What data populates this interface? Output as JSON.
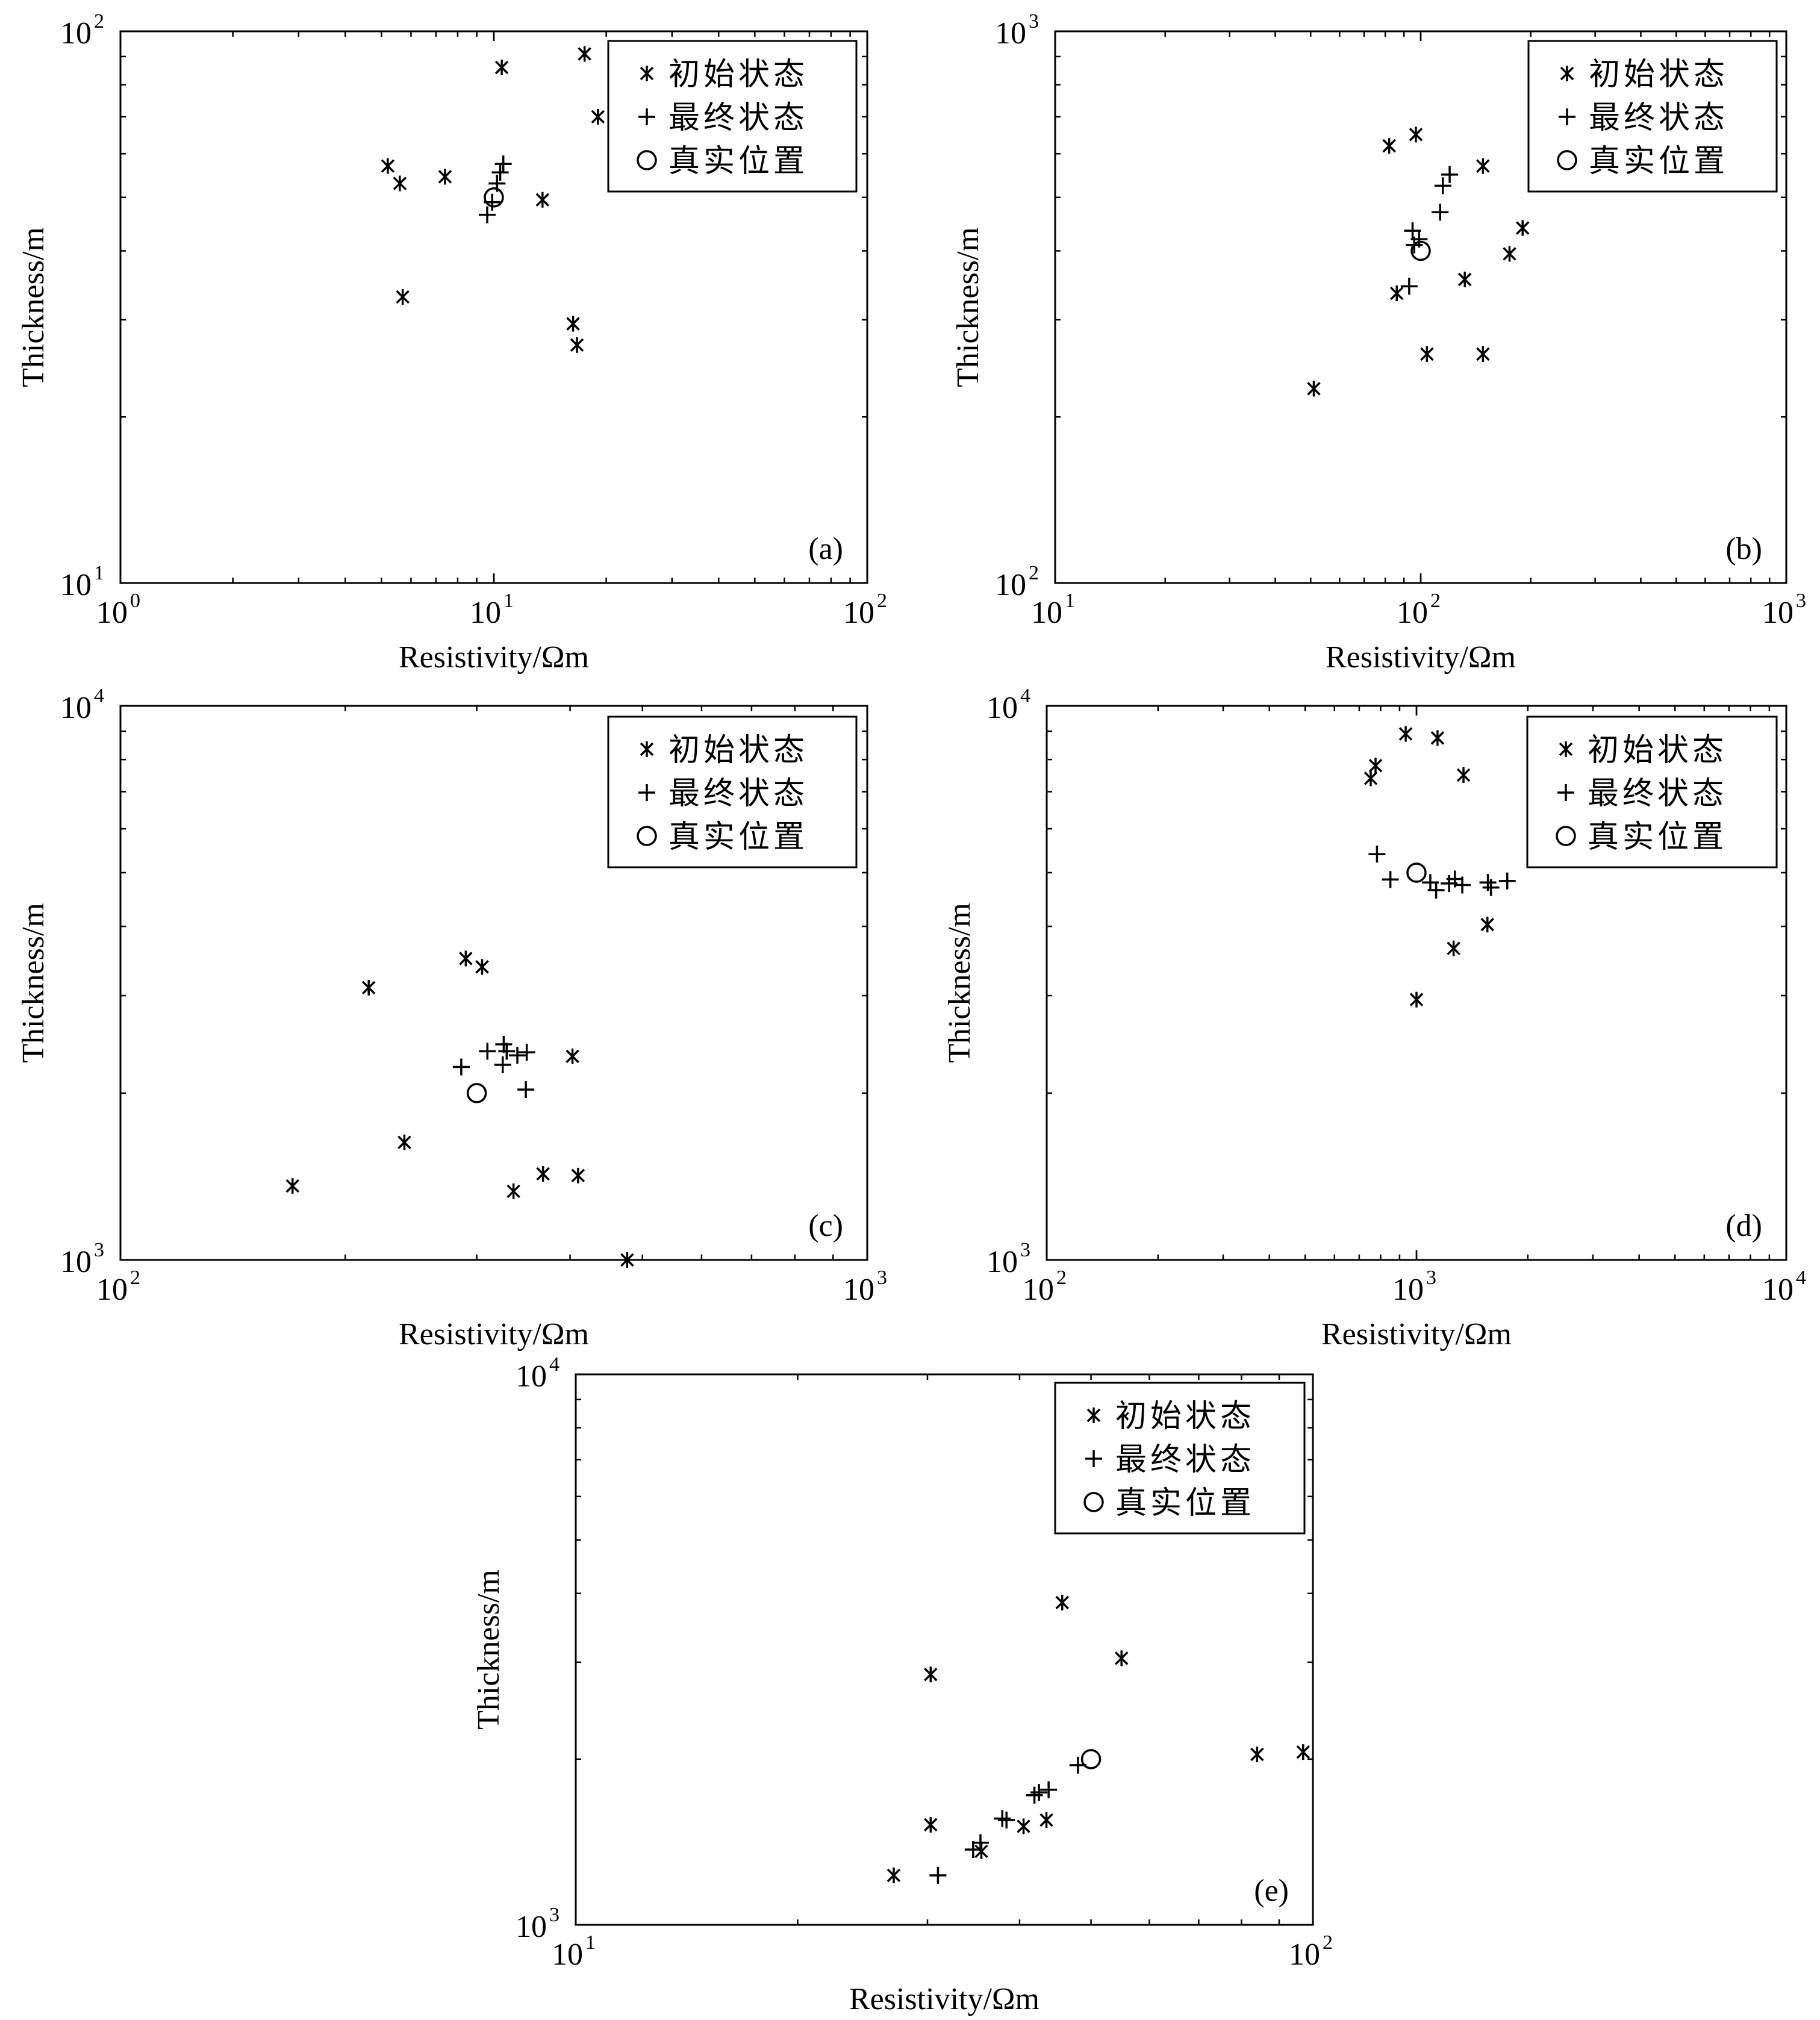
{
  "figure": {
    "legend": {
      "initial": "初始状态",
      "final": "最终状态",
      "true": "真实位置"
    }
  },
  "chart_data": [
    {
      "type": "scatter",
      "panel_label": "(a)",
      "xlabel": "Resistivity/Ωm",
      "ylabel": "Thickness/m",
      "x_scale": "log",
      "y_scale": "log",
      "x_ticks": [
        {
          "base": "10",
          "exp": "0"
        },
        {
          "base": "10",
          "exp": "1"
        },
        {
          "base": "10",
          "exp": "2"
        }
      ],
      "y_ticks": [
        {
          "base": "10",
          "exp": "1"
        },
        {
          "base": "10",
          "exp": "2"
        }
      ],
      "xlim": [
        1,
        100
      ],
      "ylim": [
        10,
        100
      ],
      "legend_position": "top-right",
      "grid": false,
      "series": [
        {
          "name": "初始状态",
          "marker": "asterisk",
          "x": [
            10.5,
            17.5,
            19,
            5.2,
            5.6,
            7.4,
            13.5,
            5.7,
            16.3,
            16.7
          ],
          "y": [
            86,
            91,
            70,
            57,
            53,
            54.5,
            49.5,
            33,
            29.5,
            27
          ]
        },
        {
          "name": "最终状态",
          "marker": "plus",
          "x": [
            9.6,
            9.9,
            10.2,
            10.4,
            10.6
          ],
          "y": [
            46.5,
            49,
            53,
            55.5,
            57.5
          ]
        },
        {
          "name": "真实位置",
          "marker": "circle",
          "x": [
            10
          ],
          "y": [
            50
          ]
        }
      ]
    },
    {
      "type": "scatter",
      "panel_label": "(b)",
      "xlabel": "Resistivity/Ωm",
      "ylabel": "Thickness/m",
      "x_scale": "log",
      "y_scale": "log",
      "x_ticks": [
        {
          "base": "10",
          "exp": "1"
        },
        {
          "base": "10",
          "exp": "2"
        },
        {
          "base": "10",
          "exp": "3"
        }
      ],
      "y_ticks": [
        {
          "base": "10",
          "exp": "2"
        },
        {
          "base": "10",
          "exp": "3"
        }
      ],
      "xlim": [
        10,
        1000
      ],
      "ylim": [
        100,
        1000
      ],
      "legend_position": "top-right",
      "grid": false,
      "series": [
        {
          "name": "初始状态",
          "marker": "asterisk",
          "x": [
            82,
            97,
            148,
            190,
            86,
            132,
            175,
            104,
            148,
            51
          ],
          "y": [
            620,
            650,
            570,
            440,
            335,
            355,
            395,
            260,
            260,
            225
          ]
        },
        {
          "name": "最终状态",
          "marker": "plus",
          "x": [
            95,
            96,
            99,
            115,
            120,
            113,
            93
          ],
          "y": [
            435,
            410,
            420,
            525,
            550,
            470,
            345
          ]
        },
        {
          "name": "真实位置",
          "marker": "circle",
          "x": [
            100
          ],
          "y": [
            400
          ]
        }
      ]
    },
    {
      "type": "scatter",
      "panel_label": "(c)",
      "xlabel": "Resistivity/Ωm",
      "ylabel": "Thickness/m",
      "x_scale": "log",
      "y_scale": "log",
      "x_ticks": [
        {
          "base": "10",
          "exp": "2"
        },
        {
          "base": "10",
          "exp": "3"
        }
      ],
      "y_ticks": [
        {
          "base": "10",
          "exp": "3"
        },
        {
          "base": "10",
          "exp": "4"
        }
      ],
      "xlim": [
        100,
        1000
      ],
      "ylim": [
        1000,
        10000
      ],
      "legend_position": "top-right",
      "grid": false,
      "series": [
        {
          "name": "初始状态",
          "marker": "asterisk",
          "x": [
            290,
            305,
            215,
            403,
            240,
            368,
            410,
            170,
            336,
            477
          ],
          "y": [
            3500,
            3380,
            3100,
            2330,
            1630,
            1430,
            1420,
            1360,
            1330,
            1000
          ]
        },
        {
          "name": "最终状态",
          "marker": "plus",
          "x": [
            326,
            329,
            310,
            340,
            350,
            286,
            325,
            349
          ],
          "y": [
            2450,
            2380,
            2380,
            2340,
            2370,
            2230,
            2250,
            2030
          ]
        },
        {
          "name": "真实位置",
          "marker": "circle",
          "x": [
            300
          ],
          "y": [
            2000
          ]
        }
      ]
    },
    {
      "type": "scatter",
      "panel_label": "(d)",
      "xlabel": "Resistivity/Ωm",
      "ylabel": "Thickness/m",
      "x_scale": "log",
      "y_scale": "log",
      "x_ticks": [
        {
          "base": "10",
          "exp": "2"
        },
        {
          "base": "10",
          "exp": "3"
        },
        {
          "base": "10",
          "exp": "4"
        }
      ],
      "y_ticks": [
        {
          "base": "10",
          "exp": "3"
        },
        {
          "base": "10",
          "exp": "4"
        }
      ],
      "xlim": [
        100,
        10000
      ],
      "ylim": [
        1000,
        10000
      ],
      "legend_position": "top-right",
      "grid": false,
      "series": [
        {
          "name": "初始状态",
          "marker": "asterisk",
          "x": [
            935,
            1140,
            775,
            752,
            1340,
            1555,
            1260,
            1000
          ],
          "y": [
            8900,
            8750,
            7800,
            7400,
            7500,
            4030,
            3650,
            2950
          ]
        },
        {
          "name": "最终状态",
          "marker": "plus",
          "x": [
            782,
            850,
            1090,
            1130,
            1225,
            1270,
            1330,
            1560,
            1590,
            1760
          ],
          "y": [
            5400,
            4860,
            4800,
            4650,
            4780,
            4870,
            4750,
            4800,
            4700,
            4830
          ]
        },
        {
          "name": "真实位置",
          "marker": "circle",
          "x": [
            1000
          ],
          "y": [
            5000
          ]
        }
      ]
    },
    {
      "type": "scatter",
      "panel_label": "(e)",
      "xlabel": "Resistivity/Ωm",
      "ylabel": "Thickness/m",
      "x_scale": "log",
      "y_scale": "log",
      "x_ticks": [
        {
          "base": "10",
          "exp": "1"
        },
        {
          "base": "10",
          "exp": "2"
        }
      ],
      "y_ticks": [
        {
          "base": "10",
          "exp": "3"
        },
        {
          "base": "10",
          "exp": "4"
        }
      ],
      "xlim": [
        10,
        100
      ],
      "ylim": [
        1000,
        10000
      ],
      "legend_position": "top-right",
      "grid": false,
      "series": [
        {
          "name": "初始状态",
          "marker": "asterisk",
          "x": [
            45.7,
            55,
            30.3,
            84,
            97,
            30.3,
            43.5,
            40.5,
            35.5,
            27
          ],
          "y": [
            3850,
            3050,
            2850,
            2040,
            2060,
            1520,
            1550,
            1510,
            1360,
            1230
          ]
        },
        {
          "name": "最终状态",
          "marker": "plus",
          "x": [
            48,
            42.5,
            43.8,
            41.9,
            37.9,
            38.4,
            35.4,
            34.6,
            31
          ],
          "y": [
            1950,
            1740,
            1760,
            1720,
            1560,
            1550,
            1410,
            1370,
            1230
          ]
        },
        {
          "name": "真实位置",
          "marker": "circle",
          "x": [
            50
          ],
          "y": [
            2000
          ]
        }
      ]
    }
  ]
}
